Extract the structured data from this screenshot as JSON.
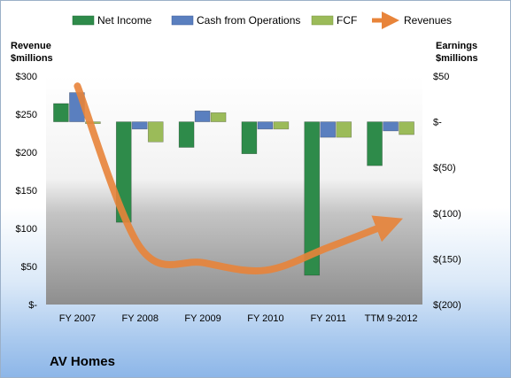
{
  "chart_data": {
    "type": "bar",
    "title": "AV Homes",
    "categories": [
      "FY 2007",
      "FY 2008",
      "FY 2009",
      "FY 2010",
      "FY 2011",
      "TTM 9-2012"
    ],
    "left_axis": {
      "label_line1": "Revenue",
      "label_line2": "$millions",
      "range": [
        0,
        300
      ],
      "ticks": [
        0,
        50,
        100,
        150,
        200,
        250,
        300
      ],
      "tick_labels": [
        "$-",
        "$50",
        "$100",
        "$150",
        "$200",
        "$250",
        "$300"
      ]
    },
    "right_axis": {
      "label_line1": "Earnings",
      "label_line2": "$millions",
      "range": [
        -200,
        50
      ],
      "ticks": [
        -200,
        -150,
        -100,
        -50,
        0,
        50
      ],
      "tick_labels": [
        "$(200)",
        "$(150)",
        "$(100)",
        "$(50)",
        "$-",
        "$50"
      ]
    },
    "series": [
      {
        "name": "Net Income",
        "type": "bar",
        "axis": "right",
        "color": "#2e8b4a",
        "values": [
          20,
          -110,
          -28,
          -35,
          -168,
          -48
        ]
      },
      {
        "name": "Cash from Operations",
        "type": "bar",
        "axis": "right",
        "color": "#5a7fbf",
        "values": [
          32,
          -8,
          12,
          -8,
          -17,
          -10
        ]
      },
      {
        "name": "FCF",
        "type": "bar",
        "axis": "right",
        "color": "#9bbb59",
        "values": [
          -2,
          -22,
          10,
          -8,
          -17,
          -14
        ]
      },
      {
        "name": "Revenues",
        "type": "line",
        "axis": "left",
        "color": "#e8843a",
        "values": [
          287,
          75,
          55,
          45,
          75,
          107
        ]
      }
    ],
    "legend_position": "top",
    "grid": false
  }
}
